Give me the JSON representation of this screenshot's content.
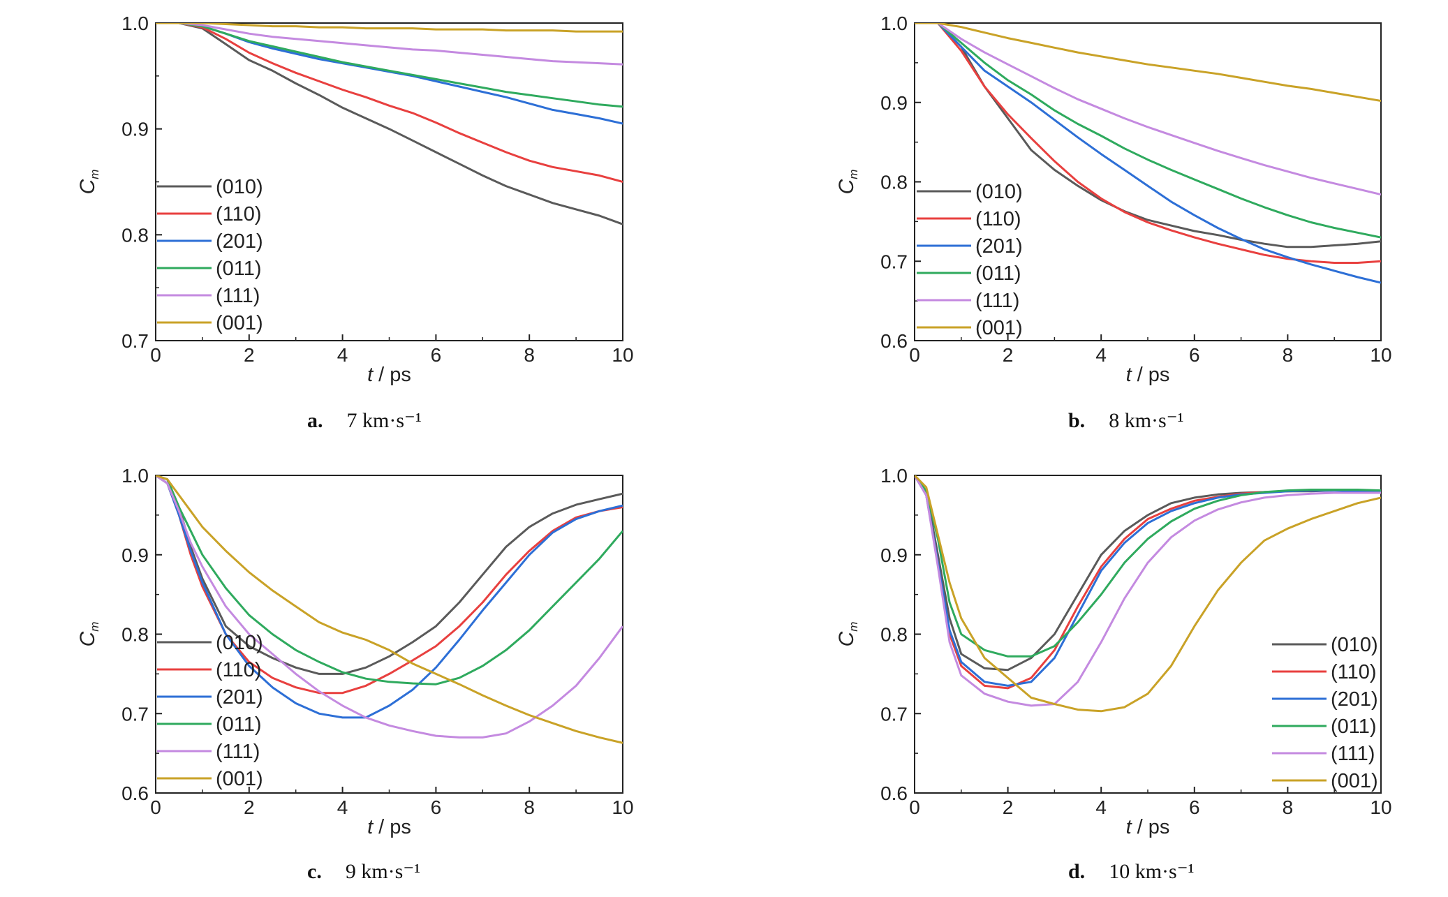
{
  "figure": {
    "series_colors": {
      "(010)": "#5a5a5a",
      "(110)": "#e8403f",
      "(201)": "#2d6fd6",
      "(011)": "#2faa5e",
      "(111)": "#c48ae0",
      "(001)": "#c9a227"
    },
    "legend_labels": [
      "(010)",
      "(110)",
      "(201)",
      "(011)",
      "(111)",
      "(001)"
    ]
  },
  "chart_data": [
    {
      "type": "line",
      "panel_letter": "a.",
      "panel_condition": "7 km·s⁻¹",
      "xlabel_italic": "t",
      "xlabel_unit": " / ps",
      "ylabel": "C",
      "ylabel_sub": "m",
      "xlim": [
        0,
        10
      ],
      "ylim": [
        0.7,
        1.0
      ],
      "xticks": [
        0,
        2,
        4,
        6,
        8,
        10
      ],
      "yticks": [
        0.7,
        0.8,
        0.9,
        1.0
      ],
      "tick_labels_x": [
        "0",
        "2",
        "4",
        "6",
        "8",
        "10"
      ],
      "tick_labels_y": [
        "0.7",
        "0.8",
        "0.9",
        "1.0"
      ],
      "legend_position": "lower-left",
      "x": [
        0,
        0.5,
        1,
        1.5,
        2,
        2.5,
        3,
        3.5,
        4,
        4.5,
        5,
        5.5,
        6,
        6.5,
        7,
        7.5,
        8,
        8.5,
        9,
        9.5,
        10
      ],
      "series": [
        {
          "name": "(010)",
          "values": [
            1.0,
            1.0,
            0.995,
            0.98,
            0.965,
            0.955,
            0.943,
            0.932,
            0.92,
            0.91,
            0.9,
            0.889,
            0.878,
            0.867,
            0.856,
            0.846,
            0.838,
            0.83,
            0.824,
            0.818,
            0.81
          ]
        },
        {
          "name": "(110)",
          "values": [
            1.0,
            1.0,
            0.996,
            0.985,
            0.972,
            0.962,
            0.953,
            0.945,
            0.937,
            0.93,
            0.922,
            0.915,
            0.906,
            0.896,
            0.887,
            0.878,
            0.87,
            0.864,
            0.86,
            0.856,
            0.85
          ]
        },
        {
          "name": "(201)",
          "values": [
            1.0,
            1.0,
            0.997,
            0.99,
            0.982,
            0.976,
            0.971,
            0.966,
            0.962,
            0.958,
            0.954,
            0.95,
            0.945,
            0.94,
            0.935,
            0.93,
            0.924,
            0.918,
            0.914,
            0.91,
            0.905
          ]
        },
        {
          "name": "(011)",
          "values": [
            1.0,
            1.0,
            0.997,
            0.99,
            0.983,
            0.978,
            0.973,
            0.968,
            0.963,
            0.959,
            0.955,
            0.951,
            0.947,
            0.943,
            0.939,
            0.935,
            0.932,
            0.929,
            0.926,
            0.923,
            0.921
          ]
        },
        {
          "name": "(111)",
          "values": [
            1.0,
            1.0,
            0.998,
            0.994,
            0.99,
            0.987,
            0.985,
            0.983,
            0.981,
            0.979,
            0.977,
            0.975,
            0.974,
            0.972,
            0.97,
            0.968,
            0.966,
            0.964,
            0.963,
            0.962,
            0.961
          ]
        },
        {
          "name": "(001)",
          "values": [
            1.0,
            1.0,
            1.0,
            0.999,
            0.998,
            0.997,
            0.997,
            0.996,
            0.996,
            0.995,
            0.995,
            0.995,
            0.994,
            0.994,
            0.994,
            0.993,
            0.993,
            0.993,
            0.992,
            0.992,
            0.992
          ]
        }
      ]
    },
    {
      "type": "line",
      "panel_letter": "b.",
      "panel_condition": "8 km·s⁻¹",
      "xlabel_italic": "t",
      "xlabel_unit": " / ps",
      "ylabel": "C",
      "ylabel_sub": "m",
      "xlim": [
        0,
        10
      ],
      "ylim": [
        0.6,
        1.0
      ],
      "xticks": [
        0,
        2,
        4,
        6,
        8,
        10
      ],
      "yticks": [
        0.6,
        0.7,
        0.8,
        0.9,
        1.0
      ],
      "tick_labels_x": [
        "0",
        "2",
        "4",
        "6",
        "8",
        "10"
      ],
      "tick_labels_y": [
        "0.6",
        "0.7",
        "0.8",
        "0.9",
        "1.0"
      ],
      "legend_position": "lower-left",
      "x": [
        0,
        0.5,
        1,
        1.5,
        2,
        2.5,
        3,
        3.5,
        4,
        4.5,
        5,
        5.5,
        6,
        6.5,
        7,
        7.5,
        8,
        8.5,
        9,
        9.5,
        10
      ],
      "series": [
        {
          "name": "(010)",
          "values": [
            1.0,
            1.0,
            0.97,
            0.92,
            0.88,
            0.84,
            0.815,
            0.795,
            0.777,
            0.763,
            0.752,
            0.745,
            0.738,
            0.733,
            0.727,
            0.722,
            0.718,
            0.718,
            0.72,
            0.722,
            0.725
          ]
        },
        {
          "name": "(110)",
          "values": [
            1.0,
            1.0,
            0.965,
            0.92,
            0.885,
            0.855,
            0.826,
            0.8,
            0.779,
            0.762,
            0.749,
            0.739,
            0.73,
            0.722,
            0.715,
            0.708,
            0.703,
            0.7,
            0.698,
            0.698,
            0.7
          ]
        },
        {
          "name": "(201)",
          "values": [
            1.0,
            1.0,
            0.97,
            0.94,
            0.92,
            0.9,
            0.878,
            0.856,
            0.835,
            0.815,
            0.795,
            0.775,
            0.758,
            0.742,
            0.728,
            0.715,
            0.705,
            0.696,
            0.688,
            0.68,
            0.673
          ]
        },
        {
          "name": "(011)",
          "values": [
            1.0,
            1.0,
            0.975,
            0.95,
            0.928,
            0.91,
            0.89,
            0.873,
            0.858,
            0.842,
            0.828,
            0.815,
            0.803,
            0.791,
            0.779,
            0.768,
            0.758,
            0.749,
            0.742,
            0.736,
            0.73
          ]
        },
        {
          "name": "(111)",
          "values": [
            1.0,
            1.0,
            0.98,
            0.963,
            0.948,
            0.933,
            0.918,
            0.904,
            0.892,
            0.88,
            0.869,
            0.859,
            0.849,
            0.839,
            0.83,
            0.821,
            0.813,
            0.805,
            0.798,
            0.791,
            0.784
          ]
        },
        {
          "name": "(001)",
          "values": [
            1.0,
            1.0,
            0.995,
            0.988,
            0.981,
            0.975,
            0.969,
            0.963,
            0.958,
            0.953,
            0.948,
            0.944,
            0.94,
            0.936,
            0.931,
            0.926,
            0.921,
            0.917,
            0.912,
            0.907,
            0.902
          ]
        }
      ]
    },
    {
      "type": "line",
      "panel_letter": "c.",
      "panel_condition": "9 km·s⁻¹",
      "xlabel_italic": "t",
      "xlabel_unit": " / ps",
      "ylabel": "C",
      "ylabel_sub": "m",
      "xlim": [
        0,
        10
      ],
      "ylim": [
        0.6,
        1.0
      ],
      "xticks": [
        0,
        2,
        4,
        6,
        8,
        10
      ],
      "yticks": [
        0.6,
        0.7,
        0.8,
        0.9,
        1.0
      ],
      "tick_labels_x": [
        "0",
        "2",
        "4",
        "6",
        "8",
        "10"
      ],
      "tick_labels_y": [
        "0.6",
        "0.7",
        "0.8",
        "0.9",
        "1.0"
      ],
      "legend_position": "lower-left",
      "x": [
        0,
        0.25,
        0.5,
        0.75,
        1,
        1.5,
        2,
        2.5,
        3,
        3.5,
        4,
        4.5,
        5,
        5.5,
        6,
        6.5,
        7,
        7.5,
        8,
        8.5,
        9,
        9.5,
        10
      ],
      "series": [
        {
          "name": "(010)",
          "values": [
            1.0,
            0.995,
            0.96,
            0.91,
            0.87,
            0.81,
            0.785,
            0.77,
            0.758,
            0.75,
            0.75,
            0.758,
            0.772,
            0.79,
            0.81,
            0.84,
            0.875,
            0.91,
            0.935,
            0.952,
            0.963,
            0.97,
            0.977
          ]
        },
        {
          "name": "(110)",
          "values": [
            1.0,
            0.99,
            0.95,
            0.9,
            0.86,
            0.8,
            0.765,
            0.745,
            0.733,
            0.726,
            0.726,
            0.735,
            0.75,
            0.767,
            0.785,
            0.81,
            0.84,
            0.875,
            0.905,
            0.93,
            0.947,
            0.955,
            0.96
          ]
        },
        {
          "name": "(201)",
          "values": [
            1.0,
            0.99,
            0.95,
            0.905,
            0.865,
            0.8,
            0.76,
            0.733,
            0.713,
            0.7,
            0.695,
            0.695,
            0.71,
            0.73,
            0.758,
            0.793,
            0.83,
            0.865,
            0.9,
            0.928,
            0.945,
            0.955,
            0.962
          ]
        },
        {
          "name": "(011)",
          "values": [
            1.0,
            0.995,
            0.96,
            0.93,
            0.9,
            0.858,
            0.824,
            0.8,
            0.78,
            0.765,
            0.752,
            0.744,
            0.74,
            0.738,
            0.737,
            0.745,
            0.76,
            0.78,
            0.805,
            0.835,
            0.865,
            0.895,
            0.93
          ]
        },
        {
          "name": "(111)",
          "values": [
            1.0,
            0.99,
            0.955,
            0.915,
            0.885,
            0.835,
            0.8,
            0.775,
            0.75,
            0.728,
            0.71,
            0.695,
            0.685,
            0.678,
            0.672,
            0.67,
            0.67,
            0.675,
            0.69,
            0.71,
            0.735,
            0.77,
            0.81
          ]
        },
        {
          "name": "(001)",
          "values": [
            1.0,
            0.995,
            0.975,
            0.955,
            0.935,
            0.905,
            0.878,
            0.855,
            0.835,
            0.815,
            0.802,
            0.793,
            0.78,
            0.763,
            0.75,
            0.737,
            0.723,
            0.71,
            0.698,
            0.688,
            0.678,
            0.67,
            0.663
          ]
        }
      ]
    },
    {
      "type": "line",
      "panel_letter": "d.",
      "panel_condition": "10 km·s⁻¹",
      "xlabel_italic": "t",
      "xlabel_unit": " / ps",
      "ylabel": "C",
      "ylabel_sub": "m",
      "xlim": [
        0,
        10
      ],
      "ylim": [
        0.6,
        1.0
      ],
      "xticks": [
        0,
        2,
        4,
        6,
        8,
        10
      ],
      "yticks": [
        0.6,
        0.7,
        0.8,
        0.9,
        1.0
      ],
      "tick_labels_x": [
        "0",
        "2",
        "4",
        "6",
        "8",
        "10"
      ],
      "tick_labels_y": [
        "0.6",
        "0.7",
        "0.8",
        "0.9",
        "1.0"
      ],
      "legend_position": "lower-right",
      "x": [
        0,
        0.25,
        0.5,
        0.75,
        1,
        1.5,
        2,
        2.5,
        3,
        3.5,
        4,
        4.5,
        5,
        5.5,
        6,
        6.5,
        7,
        7.5,
        8,
        8.5,
        9,
        9.5,
        10
      ],
      "series": [
        {
          "name": "(010)",
          "values": [
            1.0,
            0.98,
            0.9,
            0.82,
            0.775,
            0.757,
            0.755,
            0.77,
            0.8,
            0.85,
            0.9,
            0.93,
            0.95,
            0.965,
            0.972,
            0.976,
            0.978,
            0.979,
            0.98,
            0.98,
            0.981,
            0.981,
            0.98
          ]
        },
        {
          "name": "(110)",
          "values": [
            1.0,
            0.975,
            0.89,
            0.8,
            0.76,
            0.735,
            0.732,
            0.745,
            0.78,
            0.835,
            0.885,
            0.92,
            0.945,
            0.958,
            0.968,
            0.973,
            0.977,
            0.979,
            0.98,
            0.981,
            0.982,
            0.981,
            0.98
          ]
        },
        {
          "name": "(201)",
          "values": [
            1.0,
            0.975,
            0.89,
            0.805,
            0.765,
            0.74,
            0.735,
            0.74,
            0.77,
            0.825,
            0.88,
            0.915,
            0.94,
            0.955,
            0.965,
            0.972,
            0.976,
            0.978,
            0.98,
            0.981,
            0.981,
            0.98,
            0.98
          ]
        },
        {
          "name": "(011)",
          "values": [
            1.0,
            0.98,
            0.92,
            0.84,
            0.8,
            0.78,
            0.772,
            0.772,
            0.785,
            0.815,
            0.85,
            0.89,
            0.92,
            0.942,
            0.958,
            0.968,
            0.975,
            0.979,
            0.981,
            0.982,
            0.982,
            0.982,
            0.981
          ]
        },
        {
          "name": "(111)",
          "values": [
            1.0,
            0.975,
            0.885,
            0.79,
            0.748,
            0.725,
            0.715,
            0.71,
            0.712,
            0.74,
            0.79,
            0.845,
            0.89,
            0.922,
            0.943,
            0.957,
            0.966,
            0.972,
            0.975,
            0.977,
            0.978,
            0.978,
            0.978
          ]
        },
        {
          "name": "(001)",
          "values": [
            1.0,
            0.985,
            0.925,
            0.865,
            0.82,
            0.77,
            0.745,
            0.72,
            0.712,
            0.705,
            0.703,
            0.708,
            0.725,
            0.76,
            0.81,
            0.855,
            0.89,
            0.918,
            0.933,
            0.945,
            0.955,
            0.965,
            0.972
          ]
        }
      ]
    }
  ]
}
